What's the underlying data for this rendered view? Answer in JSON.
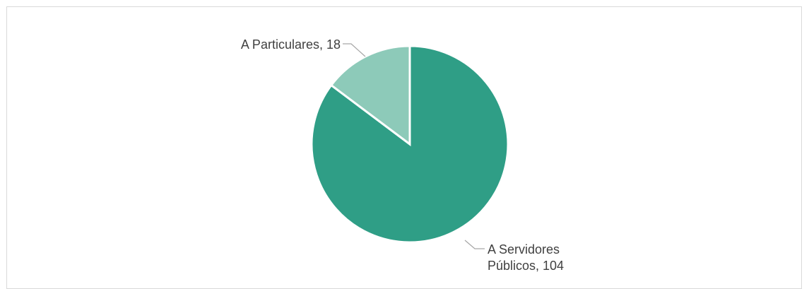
{
  "chart_data": {
    "type": "pie",
    "title": "",
    "slices": [
      {
        "name": "A Servidores Públicos",
        "value": 104,
        "color": "#2f9e86",
        "label_lines": [
          "A Servidores",
          "Públicos, 104"
        ]
      },
      {
        "name": "A Particulares",
        "value": 18,
        "color": "#8dcab9",
        "label_lines": [
          "A Particulares, 18"
        ]
      }
    ],
    "start_angle": "12 o'clock",
    "direction": "clockwise",
    "legend": "none",
    "data_labels": "outside with leader lines"
  }
}
